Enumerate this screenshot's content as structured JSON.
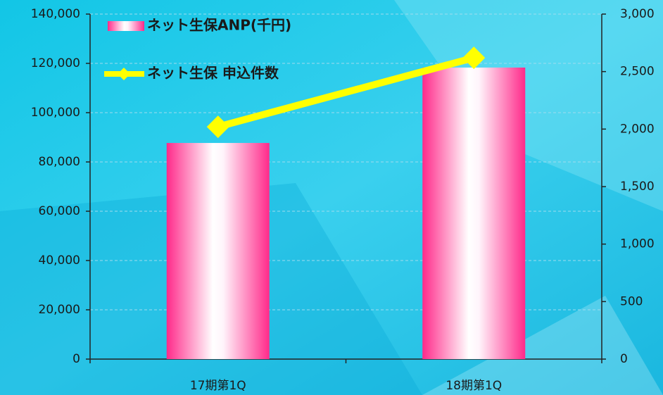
{
  "chart_data": {
    "type": "bar_line",
    "categories": [
      "17期第1Q",
      "18期第1Q"
    ],
    "series": [
      {
        "name": "ネット生保ANP(千円)",
        "type": "bar",
        "color": "#ff2a8a",
        "values": [
          87700,
          118300
        ]
      },
      {
        "name": "ネット生保 申込件数",
        "type": "line",
        "axis": "y2",
        "color": "#ffff00",
        "values": [
          2020,
          2620
        ]
      }
    ],
    "ylim": [
      0,
      140000
    ],
    "yticks": [
      0,
      {
        "value": 20000,
        "label": "20,000"
      },
      {
        "value": 40000,
        "label": "40,000"
      },
      {
        "value": 60000,
        "label": "60,000"
      },
      {
        "value": 80000,
        "label": "80,000"
      },
      {
        "value": 100000,
        "label": "100,000"
      },
      {
        "value": 120000,
        "label": "120,000"
      },
      {
        "value": 140000,
        "label": "140,000"
      }
    ],
    "y2lim": [
      0,
      3000
    ],
    "y2ticks": [
      0,
      500,
      {
        "value": 1000,
        "label": "1,000"
      },
      {
        "value": 1500,
        "label": "1,500"
      },
      {
        "value": 2000,
        "label": "2,000"
      },
      {
        "value": 2500,
        "label": "2,500"
      },
      {
        "value": 3000,
        "label": "3,000"
      }
    ],
    "grid": true,
    "legend": "top-left"
  }
}
